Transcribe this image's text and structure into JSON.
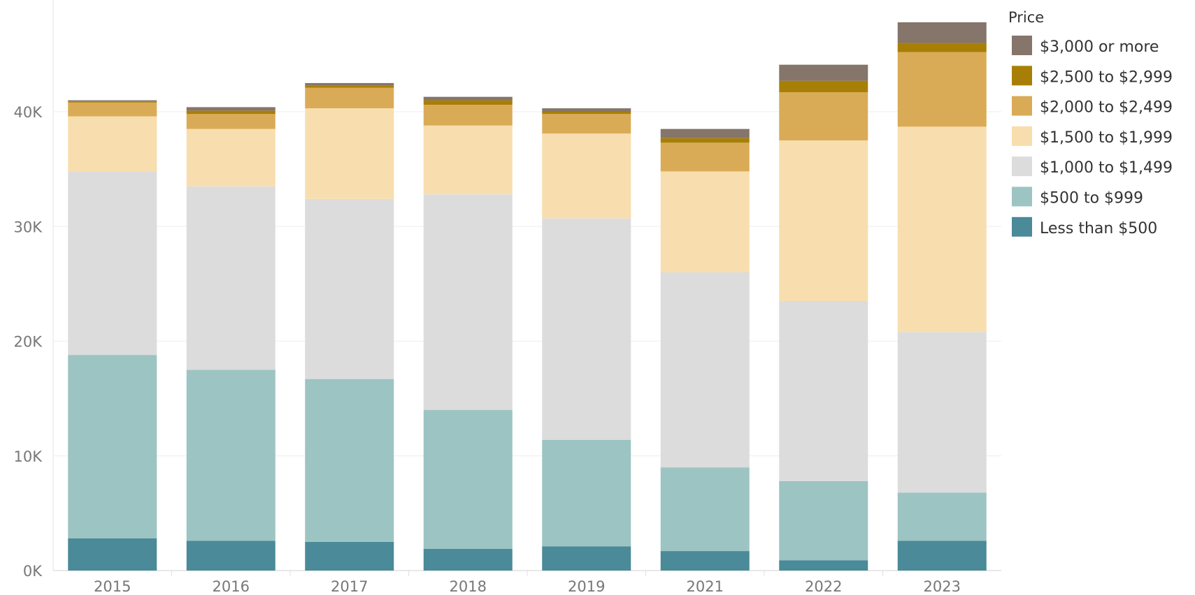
{
  "chart_data": {
    "type": "bar",
    "stacked": true,
    "categories": [
      "2015",
      "2016",
      "2017",
      "2018",
      "2019",
      "2021",
      "2022",
      "2023"
    ],
    "series": [
      {
        "name": "Less than $500",
        "color": "#4a8a99",
        "values": [
          2800,
          2600,
          2500,
          1900,
          2100,
          1700,
          900,
          2600
        ]
      },
      {
        "name": "$500 to $999",
        "color": "#9cc4c2",
        "values": [
          16000,
          14900,
          14200,
          12100,
          9300,
          7300,
          6900,
          4200
        ]
      },
      {
        "name": "$1,000 to $1,499",
        "color": "#dcdcdc",
        "values": [
          16000,
          16000,
          15700,
          18800,
          19300,
          17000,
          15700,
          14000
        ]
      },
      {
        "name": "$1,500 to $1,999",
        "color": "#f8deae",
        "values": [
          4800,
          5000,
          7900,
          6000,
          7400,
          8800,
          14000,
          17900
        ]
      },
      {
        "name": "$2,000 to $2,499",
        "color": "#daab56",
        "values": [
          1200,
          1300,
          1800,
          1800,
          1700,
          2500,
          4200,
          6500
        ]
      },
      {
        "name": "$2,500 to $2,999",
        "color": "#a87f06",
        "values": [
          100,
          300,
          200,
          400,
          200,
          400,
          1000,
          800
        ]
      },
      {
        "name": "$3,000 or more",
        "color": "#85756a",
        "values": [
          100,
          300,
          200,
          300,
          300,
          800,
          1400,
          1800
        ]
      }
    ],
    "ylim": [
      0,
      48000
    ],
    "yticks": [
      {
        "value": 0,
        "label": "0K"
      },
      {
        "value": 10000,
        "label": "10K"
      },
      {
        "value": 20000,
        "label": "20K"
      },
      {
        "value": 30000,
        "label": "30K"
      },
      {
        "value": 40000,
        "label": "40K"
      }
    ],
    "legend": {
      "title": "Price",
      "position": "right"
    },
    "grid": true,
    "xlabel": "",
    "ylabel": ""
  }
}
